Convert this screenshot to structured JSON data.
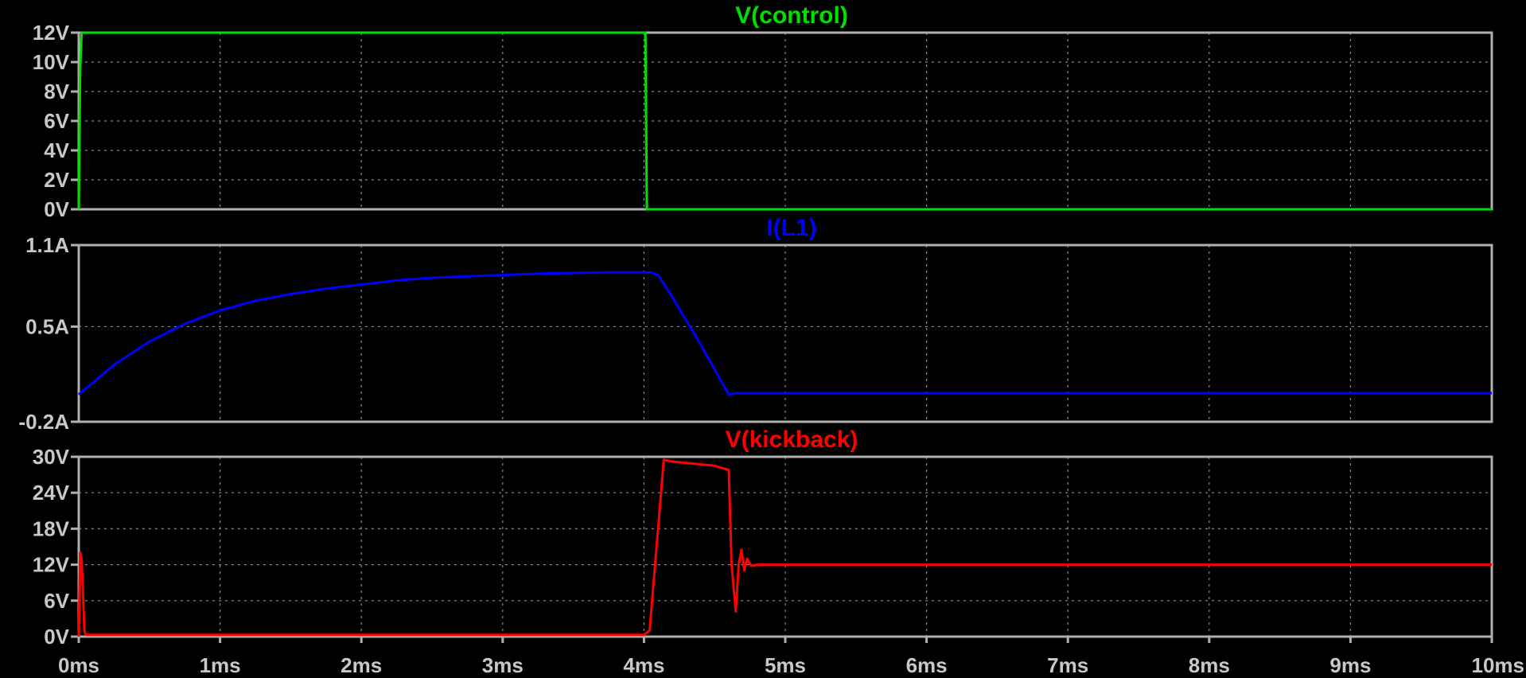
{
  "chart_data": [
    {
      "type": "line",
      "title": "V(control)",
      "color": "#00E000",
      "x_unit": "ms",
      "ylim": [
        0,
        12
      ],
      "yticks": [
        {
          "v": 12,
          "label": "12V"
        },
        {
          "v": 10,
          "label": "10V"
        },
        {
          "v": 8,
          "label": "8V"
        },
        {
          "v": 6,
          "label": "6V"
        },
        {
          "v": 4,
          "label": "4V"
        },
        {
          "v": 2,
          "label": "2V"
        },
        {
          "v": 0,
          "label": "0V"
        }
      ],
      "series": [
        {
          "x": [
            0,
            0.01,
            0.02,
            4.0,
            4.01,
            4.02,
            10
          ],
          "y": [
            0,
            9.5,
            12,
            12,
            12,
            0,
            0
          ]
        }
      ]
    },
    {
      "type": "line",
      "title": "I(L1)",
      "color": "#0000FF",
      "x_unit": "ms",
      "ylim": [
        -0.2,
        1.1
      ],
      "yticks": [
        {
          "v": 1.1,
          "label": "1.1A"
        },
        {
          "v": 0.5,
          "label": "0.5A"
        },
        {
          "v": -0.2,
          "label": "-0.2A"
        }
      ],
      "series": [
        {
          "x": [
            0,
            0.25,
            0.5,
            0.75,
            1.0,
            1.25,
            1.5,
            1.75,
            2.0,
            2.25,
            2.5,
            2.75,
            3.0,
            3.25,
            3.5,
            3.75,
            4.0,
            4.05,
            4.1,
            4.2,
            4.4,
            4.6,
            4.65,
            10
          ],
          "y": [
            0.0,
            0.22,
            0.39,
            0.52,
            0.62,
            0.69,
            0.74,
            0.78,
            0.81,
            0.84,
            0.86,
            0.87,
            0.88,
            0.89,
            0.895,
            0.9,
            0.9,
            0.9,
            0.88,
            0.72,
            0.37,
            0.0,
            0.01,
            0.01
          ]
        }
      ]
    },
    {
      "type": "line",
      "title": "V(kickback)",
      "color": "#FF0000",
      "x_unit": "ms",
      "ylim": [
        0,
        30
      ],
      "yticks": [
        {
          "v": 30,
          "label": "30V"
        },
        {
          "v": 24,
          "label": "24V"
        },
        {
          "v": 18,
          "label": "18V"
        },
        {
          "v": 12,
          "label": "12V"
        },
        {
          "v": 6,
          "label": "6V"
        },
        {
          "v": 0,
          "label": "0V"
        }
      ],
      "series": [
        {
          "x": [
            0,
            0.01,
            0.02,
            0.04,
            0.05,
            4.0,
            4.04,
            4.14,
            4.2,
            4.5,
            4.6,
            4.62,
            4.65,
            4.67,
            4.69,
            4.71,
            4.73,
            4.76,
            4.8,
            10
          ],
          "y": [
            0,
            14,
            13,
            1,
            0.3,
            0.3,
            1,
            29.5,
            29.2,
            28.5,
            27.8,
            12,
            4.2,
            12,
            14.5,
            11,
            13,
            11.8,
            12,
            12
          ]
        }
      ]
    }
  ],
  "x_axis": {
    "xlim": [
      0,
      10
    ],
    "ticks": [
      {
        "v": 0,
        "label": "0ms"
      },
      {
        "v": 1,
        "label": "1ms"
      },
      {
        "v": 2,
        "label": "2ms"
      },
      {
        "v": 3,
        "label": "3ms"
      },
      {
        "v": 4,
        "label": "4ms"
      },
      {
        "v": 5,
        "label": "5ms"
      },
      {
        "v": 6,
        "label": "6ms"
      },
      {
        "v": 7,
        "label": "7ms"
      },
      {
        "v": 8,
        "label": "8ms"
      },
      {
        "v": 9,
        "label": "9ms"
      },
      {
        "v": 10,
        "label": "10ms"
      }
    ]
  },
  "grid": true,
  "background": "#000000"
}
